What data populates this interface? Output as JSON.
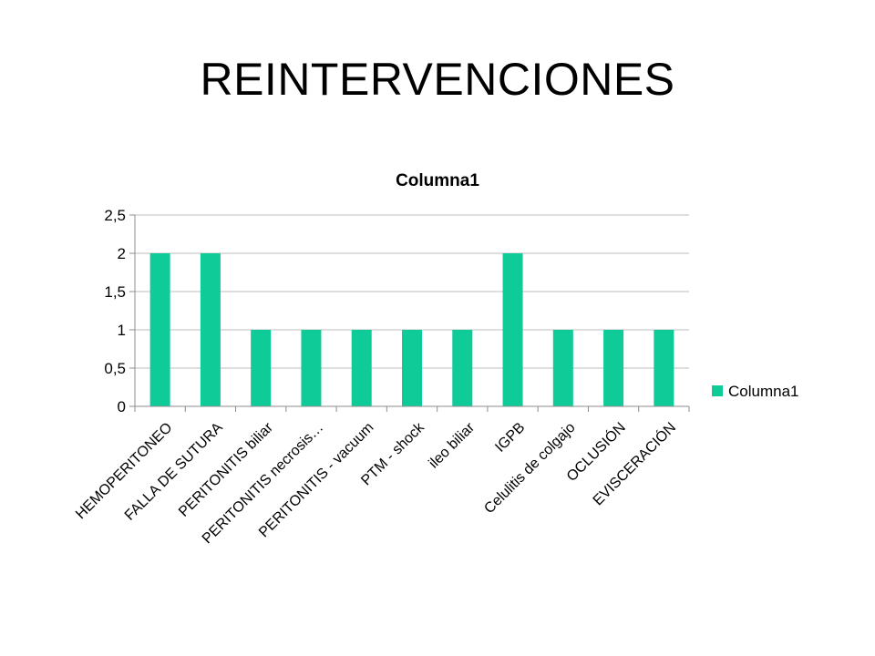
{
  "slide": {
    "title": "REINTERVENCIONES"
  },
  "colors": {
    "bar": "#0FCB98",
    "grid": "#BDBDBD",
    "axis": "#8C8C8C"
  },
  "chart_data": {
    "type": "bar",
    "title": "Columna1",
    "categories": [
      "HEMOPERITONEO",
      "FALLA DE SUTURA",
      "PERITONITIS biliar",
      "PERITONITIS necrosis…",
      "PERITONITIS - vacuum",
      "PTM - shock",
      "ileo biliar",
      "IGPB",
      "Celulitis de colgajo",
      "OCLUSIÓN",
      "EVISCERACIÓN"
    ],
    "series": [
      {
        "name": "Columna1",
        "values": [
          2,
          2,
          1,
          1,
          1,
          1,
          1,
          2,
          1,
          1,
          1
        ]
      }
    ],
    "yticks": [
      "0",
      "0,5",
      "1",
      "1,5",
      "2",
      "2,5"
    ],
    "ytick_values": [
      0,
      0.5,
      1,
      1.5,
      2,
      2.5
    ],
    "ylim": [
      0,
      2.5
    ],
    "grid": true,
    "legend": {
      "position": "right",
      "label": "Columna1"
    }
  }
}
